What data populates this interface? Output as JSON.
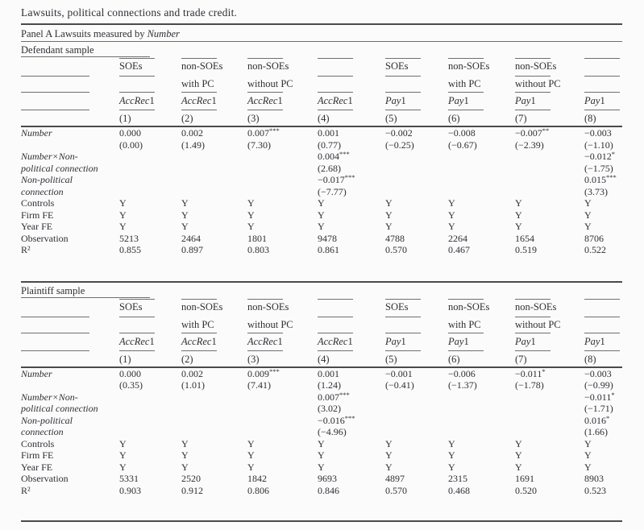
{
  "title": "Lawsuits, political connections and trade credit.",
  "panel": {
    "label_prefix": "Panel A Lawsuits measured by ",
    "label_measure": "Number"
  },
  "header": {
    "groups": [
      {
        "line1": "SOEs",
        "line2": "",
        "split": false
      },
      {
        "line1": "non-SOEs",
        "line2": "with PC",
        "split": false
      },
      {
        "line1": "non-SOEs",
        "line2": "without PC",
        "split": false
      },
      {
        "line1": "",
        "line2": "",
        "split": false
      },
      {
        "line1": "SOEs",
        "line2": "",
        "split": false
      },
      {
        "line1": "non-SOEs",
        "line2": "with PC",
        "split": false
      },
      {
        "line1": "non-SOEs",
        "line2": "without PC",
        "split": true
      },
      {
        "line1": "",
        "line2": "",
        "split": false
      }
    ],
    "measures": [
      {
        "it": "AccRec",
        "rm": "1"
      },
      {
        "it": "AccRec",
        "rm": "1"
      },
      {
        "it": "AccRec",
        "rm": "1"
      },
      {
        "it": "AccRec",
        "rm": "1"
      },
      {
        "it": "Pay",
        "rm": "1"
      },
      {
        "it": "Pay",
        "rm": "1"
      },
      {
        "it": "Pay",
        "rm": "1"
      },
      {
        "it": "Pay",
        "rm": "1"
      }
    ],
    "numbers": [
      "(1)",
      "(2)",
      "(3)",
      "(4)",
      "(5)",
      "(6)",
      "(7)",
      "(8)"
    ]
  },
  "sections": [
    {
      "sample_label": "Defendant sample",
      "rows": [
        {
          "label": "Number",
          "italic": true,
          "cells": [
            "0.000",
            "0.002",
            "0.007***",
            "0.001",
            "−0.002",
            "−0.008",
            "−0.007**",
            "−0.003"
          ]
        },
        {
          "label": "",
          "italic": false,
          "cells": [
            "(0.00)",
            "(1.49)",
            "(7.30)",
            "(0.77)",
            "(−0.25)",
            "(−0.67)",
            "(−2.39)",
            "(−1.10)"
          ]
        },
        {
          "label": "Number×Non-",
          "italic": true,
          "cells": [
            "",
            "",
            "",
            "0.004***",
            "",
            "",
            "",
            "−0.012*"
          ]
        },
        {
          "label": "political connection",
          "italic": true,
          "cells": [
            "",
            "",
            "",
            "(2.68)",
            "",
            "",
            "",
            "(−1.75)"
          ]
        },
        {
          "label": "Non-political",
          "italic": true,
          "cells": [
            "",
            "",
            "",
            "−0.017***",
            "",
            "",
            "",
            "0.015***"
          ]
        },
        {
          "label": "connection",
          "italic": true,
          "cells": [
            "",
            "",
            "",
            "(−7.77)",
            "",
            "",
            "",
            "(3.73)"
          ]
        },
        {
          "label": "Controls",
          "italic": false,
          "cells": [
            "Y",
            "Y",
            "Y",
            "Y",
            "Y",
            "Y",
            "Y",
            "Y"
          ]
        },
        {
          "label": "Firm FE",
          "italic": false,
          "cells": [
            "Y",
            "Y",
            "Y",
            "Y",
            "Y",
            "Y",
            "Y",
            "Y"
          ]
        },
        {
          "label": "Year FE",
          "italic": false,
          "cells": [
            "Y",
            "Y",
            "Y",
            "Y",
            "Y",
            "Y",
            "Y",
            "Y"
          ]
        },
        {
          "label": "Observation",
          "italic": false,
          "cells": [
            "5213",
            "2464",
            "1801",
            "9478",
            "4788",
            "2264",
            "1654",
            "8706"
          ]
        },
        {
          "label": "R²",
          "italic": false,
          "cells": [
            "0.855",
            "0.897",
            "0.803",
            "0.861",
            "0.570",
            "0.467",
            "0.519",
            "0.522"
          ]
        }
      ]
    },
    {
      "sample_label": "Plaintiff sample",
      "rows": [
        {
          "label": "Number",
          "italic": true,
          "cells": [
            "0.000",
            "0.002",
            "0.009***",
            "0.001",
            "−0.001",
            "−0.006",
            "−0.011*",
            "−0.003"
          ]
        },
        {
          "label": "",
          "italic": false,
          "cells": [
            "(0.35)",
            "(1.01)",
            "(7.41)",
            "(1.24)",
            "(−0.41)",
            "(−1.37)",
            "(−1.78)",
            "(−0.99)"
          ]
        },
        {
          "label": "Number×Non-",
          "italic": true,
          "cells": [
            "",
            "",
            "",
            "0.007***",
            "",
            "",
            "",
            "−0.011*"
          ]
        },
        {
          "label": "political connection",
          "italic": true,
          "cells": [
            "",
            "",
            "",
            "(3.02)",
            "",
            "",
            "",
            "(−1.71)"
          ]
        },
        {
          "label": "Non-political",
          "italic": true,
          "cells": [
            "",
            "",
            "",
            "−0.016***",
            "",
            "",
            "",
            "0.016*"
          ]
        },
        {
          "label": "connection",
          "italic": true,
          "cells": [
            "",
            "",
            "",
            "(−4.96)",
            "",
            "",
            "",
            "(1.66)"
          ]
        },
        {
          "label": "Controls",
          "italic": false,
          "cells": [
            "Y",
            "Y",
            "Y",
            "Y",
            "Y",
            "Y",
            "Y",
            "Y"
          ]
        },
        {
          "label": "Firm FE",
          "italic": false,
          "cells": [
            "Y",
            "Y",
            "Y",
            "Y",
            "Y",
            "Y",
            "Y",
            "Y"
          ]
        },
        {
          "label": "Year FE",
          "italic": false,
          "cells": [
            "Y",
            "Y",
            "Y",
            "Y",
            "Y",
            "Y",
            "Y",
            "Y"
          ]
        },
        {
          "label": "Observation",
          "italic": false,
          "cells": [
            "5331",
            "2520",
            "1842",
            "9693",
            "4897",
            "2315",
            "1691",
            "8903"
          ]
        },
        {
          "label": "R²",
          "italic": false,
          "cells": [
            "0.903",
            "0.912",
            "0.806",
            "0.846",
            "0.570",
            "0.468",
            "0.520",
            "0.523"
          ]
        }
      ]
    }
  ],
  "colors": {
    "text": "#2f2f36",
    "thin_rule": "#6f6f6f",
    "heavy_rule": "#4a4a4a",
    "background": "#fbfbfb"
  }
}
